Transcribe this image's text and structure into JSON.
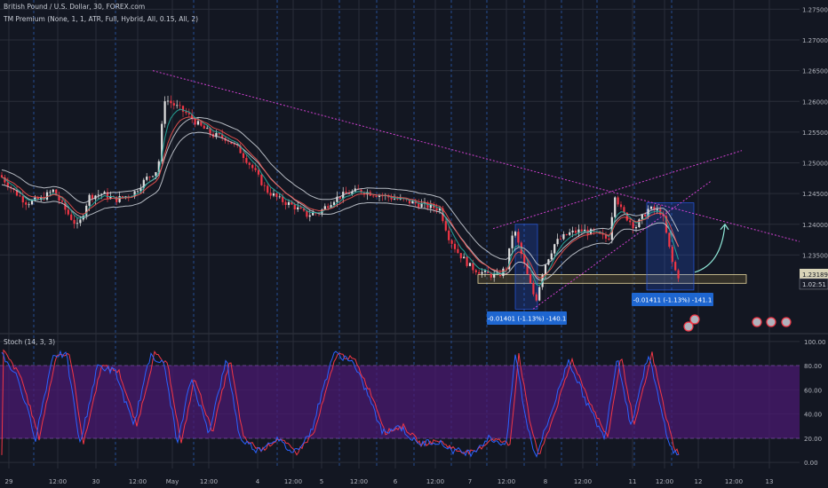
{
  "legends": {
    "symbol": "British Pound / U.S. Dollar, 30, FOREX.com",
    "indicator": "TM Premium (None, 1, 1, ATR, Full, Hybrid, All, 0.15, All, 2)",
    "stoch": "Stoch (14, 3, 3)"
  },
  "colors": {
    "background": "#131722",
    "grid": "#2a2e39",
    "session_line": "#2b5bb0",
    "trendline": "#d040d0",
    "candle_up": "#e0e0e0",
    "candle_down": "#f23645",
    "ma_fast": "#26a69a",
    "ma_slow": "#ef5350",
    "envelope": "#c8ccd4",
    "stoch_k": "#2962ff",
    "stoch_d": "#f23645",
    "stoch_band": "#4a1a70",
    "measure_label": "#1e66d0"
  },
  "chart_data": [
    {
      "type": "candlestick",
      "ylim": [
        1.2225,
        1.2765
      ],
      "ytick_labels": [
        "1.27500",
        "1.27000",
        "1.26500",
        "1.26000",
        "1.25500",
        "1.25000",
        "1.24500",
        "1.24000",
        "1.23500"
      ],
      "price_badges": [
        {
          "value": 1.23189,
          "label": "1.23189"
        },
        {
          "value": 1.2303,
          "label": "1.02:51"
        }
      ],
      "xtick_labels": [
        "29",
        "12:00",
        "30",
        "12:00",
        "May",
        "12:00",
        "4",
        "12:00",
        "5",
        "12:00",
        "6",
        "12:00",
        "7",
        "12:00",
        "8",
        "12:00",
        "11",
        "12:00",
        "12",
        "12:00",
        "13"
      ],
      "support_zone": [
        1.2304,
        1.2318
      ],
      "measurements": [
        {
          "label": "-0.01401 (-1.13%) -140.1"
        },
        {
          "label": "-0.01411 (-1.13%) -141.1"
        }
      ]
    },
    {
      "type": "line",
      "name": "Stoch (14, 3, 3)",
      "ylim": [
        -5,
        105
      ],
      "band": [
        20,
        80
      ],
      "ytick_labels": [
        "100.00",
        "80.00",
        "60.00",
        "40.00",
        "20.00",
        "0.00"
      ]
    }
  ]
}
